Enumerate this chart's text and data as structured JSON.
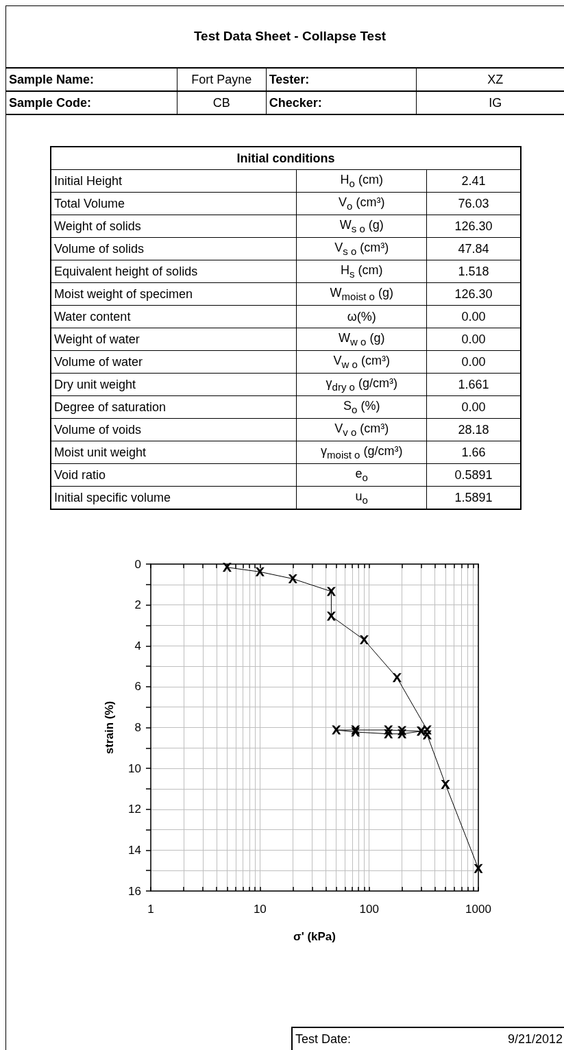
{
  "chart_data": [
    {
      "type": "other",
      "title": "Test Data Sheet - Collapse Test",
      "annotations": [
        "Sample Name:",
        "Fort Payne",
        "Tester:",
        "XZ",
        "Sample Code:",
        "CB",
        "Checker:",
        "IG"
      ]
    },
    {
      "type": "other",
      "title": "Initial conditions",
      "annotations": [
        "Initial Height",
        "H$_{o}$ (cm)",
        "2.41",
        "Total Volume",
        "V$_{o}$ (cm³)",
        "76.03",
        "Weight of solids",
        "W$_{s o}$ (g)",
        "126.30",
        "Volume of solids",
        "V$_{s o}$ (cm³)",
        "47.84",
        "Equivalent height of solids",
        "H$_{s}$ (cm)",
        "1.518",
        "Moist weight of specimen",
        "W$_{moist o}$ (g)",
        "126.30",
        "Water content",
        "ω(%)",
        "0.00",
        "Weight of water",
        "W$_{w o}$ (g)",
        "0.00",
        "Volume of water",
        "V$_{w o}$ (cm³)",
        "0.00",
        "Dry unit weight",
        "γ$_{dry o}$ (g/cm³)",
        "1.661",
        "Degree of saturation",
        "S$_{o}$ (%)",
        "0.00",
        "Volume of voids",
        "V$_{v o}$ (cm³)",
        "28.18",
        "Moist unit weight",
        "γ$_{moist o}$ (g/cm³)",
        "1.66",
        "Void ratio",
        "e$_{o}$",
        "0.5891",
        "Initial specific volume",
        "u$_{o}$",
        "1.5891"
      ]
    },
    {
      "type": "line",
      "xlabel": "σ' (kPa)",
      "ylabel": "strain (%)",
      "log": "x",
      "grid": true,
      "marker": "cross",
      "line_style": "solid",
      "x": [
        5,
        10,
        20,
        45,
        45,
        90,
        180,
        340,
        300,
        200,
        150,
        75,
        50,
        75,
        150,
        200,
        300,
        340,
        500,
        1000
      ],
      "series": [
        {
          "color": "#000000",
          "values": [
            0.16,
            0.38,
            0.72,
            1.34,
            2.55,
            3.71,
            5.56,
            8.12,
            8.18,
            8.15,
            8.12,
            8.12,
            8.12,
            8.22,
            8.31,
            8.31,
            8.18,
            8.36,
            10.78,
            14.9
          ]
        }
      ],
      "xlim": [
        1,
        1000
      ],
      "xticks": [
        1,
        {
          "value": 2,
          "label": null
        },
        {
          "value": 3,
          "label": null
        },
        {
          "value": 4,
          "label": null
        },
        {
          "value": 5,
          "label": null
        },
        {
          "value": 6,
          "label": null
        },
        {
          "value": 7,
          "label": null
        },
        {
          "value": 8,
          "label": null
        },
        {
          "value": 9,
          "label": null
        },
        10,
        {
          "value": 20,
          "label": null
        },
        {
          "value": 30,
          "label": null
        },
        {
          "value": 40,
          "label": null
        },
        {
          "value": 50,
          "label": null
        },
        {
          "value": 60,
          "label": null
        },
        {
          "value": 70,
          "label": null
        },
        {
          "value": 80,
          "label": null
        },
        {
          "value": 90,
          "label": null
        },
        100,
        {
          "value": 200,
          "label": null
        },
        {
          "value": 300,
          "label": null
        },
        {
          "value": 400,
          "label": null
        },
        {
          "value": 500,
          "label": null
        },
        {
          "value": 600,
          "label": null
        },
        {
          "value": 700,
          "label": null
        },
        {
          "value": 800,
          "label": null
        },
        {
          "value": 900,
          "label": null
        },
        1000
      ],
      "ylim": [
        16,
        0
      ],
      "yticks": [
        0,
        {
          "value": 1,
          "label": null
        },
        2,
        {
          "value": 3,
          "label": null
        },
        4,
        {
          "value": 5,
          "label": null
        },
        6,
        {
          "value": 7,
          "label": null
        },
        8,
        {
          "value": 9,
          "label": null
        },
        10,
        {
          "value": 11,
          "label": null
        },
        12,
        {
          "value": 13,
          "label": null
        },
        14,
        {
          "value": 15,
          "label": null
        },
        16
      ]
    },
    {
      "type": "other",
      "annotations": [
        "Test Date:",
        "9/21/2012"
      ]
    }
  ]
}
